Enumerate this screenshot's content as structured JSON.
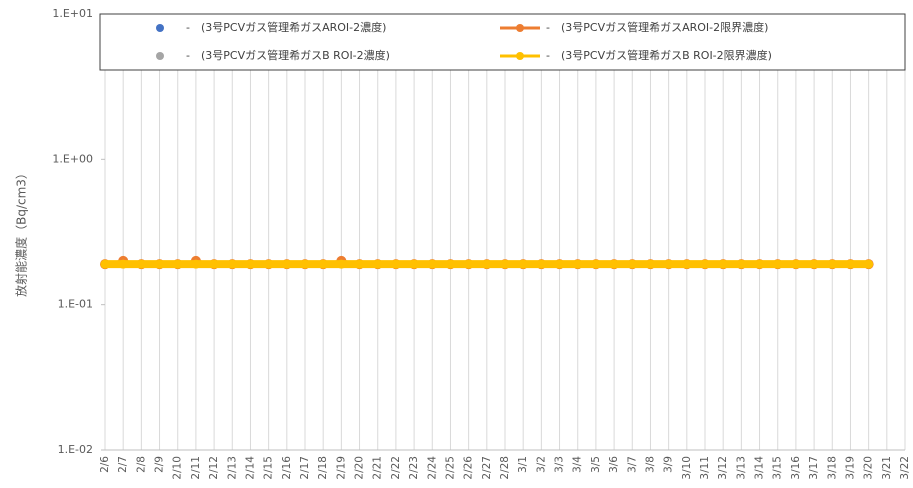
{
  "chart_data": {
    "type": "line",
    "y_label": "放射能濃度（Bq/cm3）",
    "log_scale": true,
    "xgrid": true,
    "ylim": [
      0.01,
      10
    ],
    "yticks": [
      {
        "value": 0.01,
        "label": "1.E-02"
      },
      {
        "value": 0.1,
        "label": "1.E-01"
      },
      {
        "value": 1,
        "label": "1.E+00"
      },
      {
        "value": 10,
        "label": "1.E+01"
      }
    ],
    "categories": [
      "2/6",
      "2/7",
      "2/8",
      "2/9",
      "2/10",
      "2/11",
      "2/12",
      "2/13",
      "2/14",
      "2/15",
      "2/16",
      "2/17",
      "2/18",
      "2/19",
      "2/20",
      "2/21",
      "2/22",
      "2/23",
      "2/24",
      "2/25",
      "2/26",
      "2/27",
      "2/28",
      "3/1",
      "3/2",
      "3/3",
      "3/4",
      "3/5",
      "3/6",
      "3/7",
      "3/8",
      "3/9",
      "3/10",
      "3/11",
      "3/12",
      "3/13",
      "3/14",
      "3/15",
      "3/16",
      "3/17",
      "3/18",
      "3/19",
      "3/20",
      "3/21",
      "3/22"
    ],
    "series": [
      {
        "name": "-　(3号PCVガス管理希ガスAROI-2濃度)",
        "color": "#4472c4",
        "values": [
          null,
          null,
          null,
          null,
          null,
          null,
          null,
          null,
          null,
          null,
          null,
          null,
          null,
          null,
          null,
          null,
          null,
          null,
          null,
          null,
          null,
          null,
          null,
          null,
          null,
          null,
          null,
          null,
          null,
          null,
          null,
          null,
          null,
          null,
          null,
          null,
          null,
          null,
          null,
          null,
          null,
          null,
          null,
          null,
          null
        ]
      },
      {
        "name": "-　(3号PCVガス管理希ガスAROI-2限界濃度)",
        "color": "#ed7d31",
        "values": [
          0.19,
          0.2,
          0.19,
          0.19,
          0.19,
          0.2,
          0.19,
          0.19,
          0.19,
          0.19,
          0.19,
          0.19,
          0.19,
          0.2,
          0.19,
          0.19,
          0.19,
          0.19,
          0.19,
          0.19,
          0.19,
          0.19,
          0.19,
          0.19,
          0.19,
          0.19,
          0.19,
          0.19,
          0.19,
          0.19,
          0.19,
          0.19,
          0.19,
          0.19,
          0.19,
          0.19,
          0.19,
          0.19,
          0.19,
          0.19,
          0.19,
          0.19,
          0.19,
          null,
          null
        ]
      },
      {
        "name": "-　(3号PCVガス管理希ガスB ROI-2濃度)",
        "color": "#a5a5a5",
        "values": [
          null,
          null,
          null,
          null,
          null,
          null,
          null,
          null,
          null,
          null,
          null,
          null,
          null,
          null,
          null,
          null,
          null,
          null,
          null,
          null,
          null,
          null,
          null,
          null,
          null,
          null,
          null,
          null,
          null,
          null,
          null,
          null,
          null,
          null,
          null,
          null,
          null,
          null,
          null,
          null,
          null,
          null,
          null,
          null,
          null
        ]
      },
      {
        "name": "-　(3号PCVガス管理希ガスB ROI-2限界濃度)",
        "color": "#ffc000",
        "values": [
          0.19,
          0.19,
          0.19,
          0.19,
          0.19,
          0.19,
          0.19,
          0.19,
          0.19,
          0.19,
          0.19,
          0.19,
          0.19,
          0.19,
          0.19,
          0.19,
          0.19,
          0.19,
          0.19,
          0.19,
          0.19,
          0.19,
          0.19,
          0.19,
          0.19,
          0.19,
          0.19,
          0.19,
          0.19,
          0.19,
          0.19,
          0.19,
          0.19,
          0.19,
          0.19,
          0.19,
          0.19,
          0.19,
          0.19,
          0.19,
          0.19,
          0.19,
          0.19,
          null,
          null
        ]
      }
    ]
  }
}
